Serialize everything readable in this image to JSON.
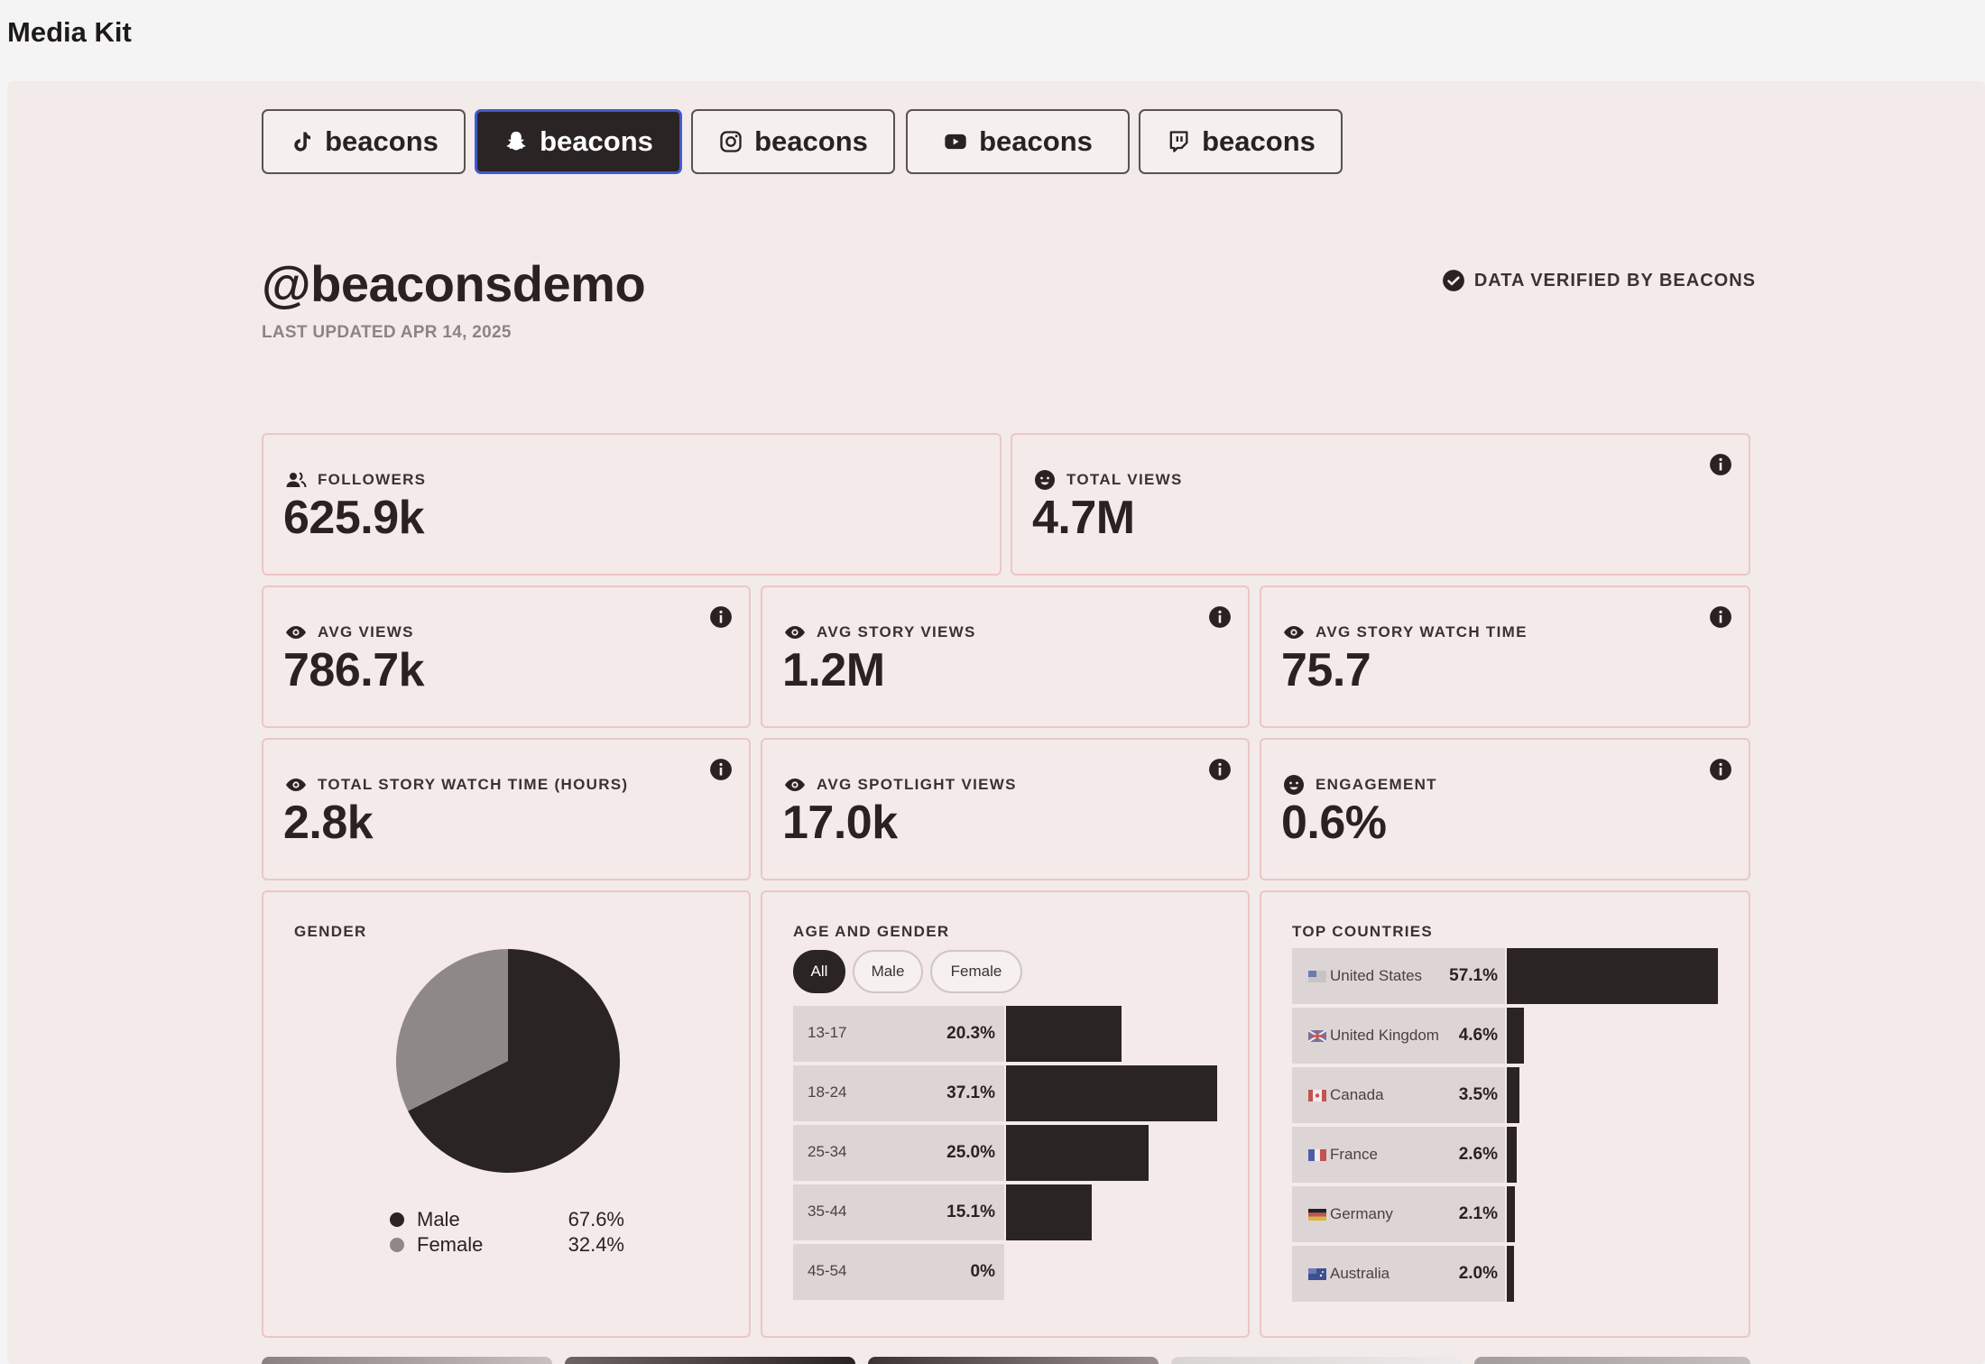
{
  "app_title": "Media Kit",
  "tabs": [
    {
      "label": "beacons",
      "icon": "tiktok-icon"
    },
    {
      "label": "beacons",
      "icon": "snapchat-icon",
      "active": true
    },
    {
      "label": "beacons",
      "icon": "instagram-icon"
    },
    {
      "label": "beacons",
      "icon": "youtube-icon"
    },
    {
      "label": "beacons",
      "icon": "twitch-icon"
    }
  ],
  "profile": {
    "handle": "@beaconsdemo",
    "last_updated": "LAST UPDATED APR 14, 2025",
    "verified": "DATA VERIFIED BY BEACONS"
  },
  "stats": [
    {
      "label": "FOLLOWERS",
      "value": "625.9k",
      "icon": "followers-icon"
    },
    {
      "label": "TOTAL VIEWS",
      "value": "4.7M",
      "icon": "smiley-icon"
    },
    {
      "label": "AVG VIEWS",
      "value": "786.7k",
      "icon": "eye-icon"
    },
    {
      "label": "AVG STORY VIEWS",
      "value": "1.2M",
      "icon": "eye-icon"
    },
    {
      "label": "AVG STORY WATCH TIME",
      "value": "75.7",
      "icon": "eye-icon"
    },
    {
      "label": "TOTAL STORY WATCH TIME (HOURS)",
      "value": "2.8k",
      "icon": "eye-icon"
    },
    {
      "label": "AVG SPOTLIGHT VIEWS",
      "value": "17.0k",
      "icon": "eye-icon"
    },
    {
      "label": "ENGAGEMENT",
      "value": "0.6%",
      "icon": "smiley-icon"
    }
  ],
  "gender": {
    "title": "GENDER",
    "legend": [
      {
        "label": "Male",
        "value": "67.6%"
      },
      {
        "label": "Female",
        "value": "32.4%"
      }
    ]
  },
  "age_gender": {
    "title": "AGE AND GENDER",
    "filters": [
      "All",
      "Male",
      "Female"
    ],
    "active_filter": "All"
  },
  "countries": {
    "title": "TOP COUNTRIES"
  },
  "colors": {
    "dark": "#2b2424",
    "female": "#8f8888",
    "panel": "#f3ebe9",
    "card_border": "#ecc6c6",
    "active_tab_border": "#3f5bcc"
  },
  "chart_data": [
    {
      "type": "pie",
      "title": "GENDER",
      "categories": [
        "Male",
        "Female"
      ],
      "values": [
        67.6,
        32.4
      ],
      "colors": [
        "#2b2424",
        "#8f8888"
      ]
    },
    {
      "type": "bar",
      "orientation": "horizontal",
      "title": "AGE AND GENDER",
      "categories": [
        "13-17",
        "18-24",
        "25-34",
        "35-44",
        "45-54"
      ],
      "values": [
        20.3,
        37.1,
        25.0,
        15.1,
        0
      ],
      "labels": [
        "20.3%",
        "37.1%",
        "25.0%",
        "15.1%",
        "0%"
      ]
    },
    {
      "type": "bar",
      "orientation": "horizontal",
      "title": "TOP COUNTRIES",
      "categories": [
        "United States",
        "United Kingdom",
        "Canada",
        "France",
        "Germany",
        "Australia"
      ],
      "display_labels": [
        "United States",
        "United Kingdom",
        "Canada",
        "France",
        "Germany",
        "Australia"
      ],
      "values": [
        57.1,
        4.6,
        3.5,
        2.6,
        2.1,
        2.0
      ],
      "labels": [
        "57.1%",
        "4.6%",
        "3.5%",
        "2.6%",
        "2.1%",
        "2.0%"
      ]
    }
  ]
}
